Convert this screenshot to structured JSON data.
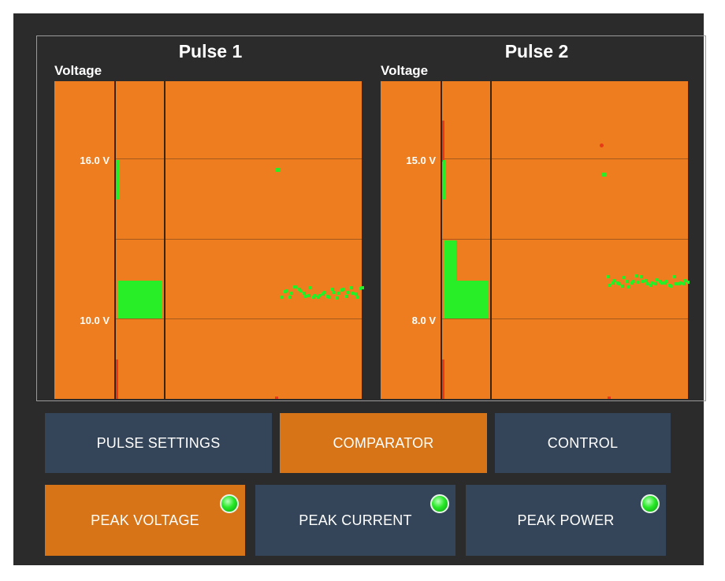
{
  "panels": [
    {
      "title": "Pulse 1",
      "ylabel": "Voltage",
      "ticks": [
        "16.0 V",
        "10.0 V"
      ]
    },
    {
      "title": "Pulse 2",
      "ylabel": "Voltage",
      "ticks": [
        "15.0 V",
        "8.0 V"
      ]
    }
  ],
  "tabs": [
    {
      "label": "PULSE SETTINGS",
      "active": false
    },
    {
      "label": "COMPARATOR",
      "active": true
    },
    {
      "label": "CONTROL",
      "active": false
    }
  ],
  "measures": [
    {
      "label": "PEAK VOLTAGE",
      "active": true,
      "indicator": "green-led-icon"
    },
    {
      "label": "PEAK CURRENT",
      "active": false,
      "indicator": "green-led-icon"
    },
    {
      "label": "PEAK POWER",
      "active": false,
      "indicator": "green-led-icon"
    }
  ],
  "colors": {
    "background": "#2b2b2b",
    "plot": "#ed7d1e",
    "trace": "#27ee27",
    "marker": "#e83a17",
    "button": "#34455a",
    "button_active": "#d67417"
  }
}
